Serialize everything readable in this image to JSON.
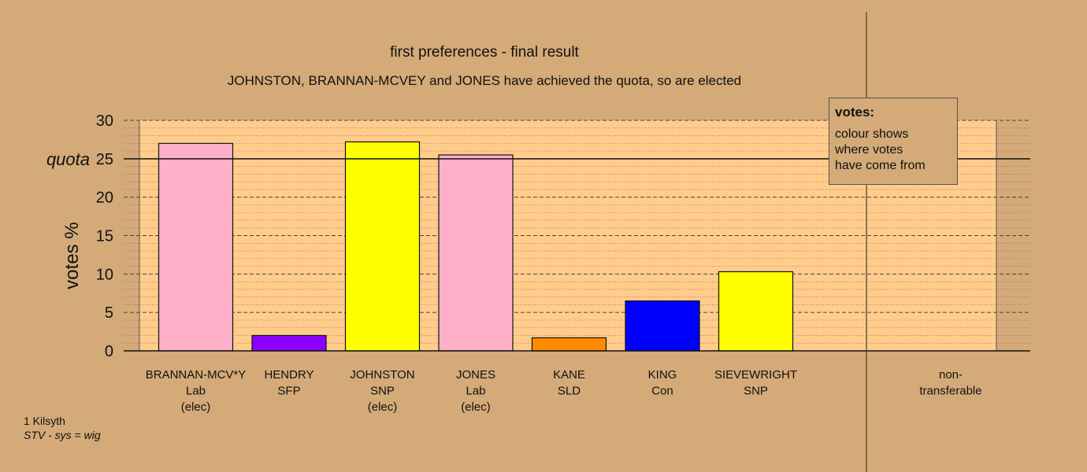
{
  "chart_data": {
    "type": "bar",
    "title": "first preferences - final result",
    "subtitle": "JOHNSTON, BRANNAN-MCVEY and JONES have achieved the quota, so are elected",
    "ylabel": "votes %",
    "ylim": [
      0,
      30
    ],
    "yticks": [
      0,
      5,
      10,
      15,
      20,
      25,
      30
    ],
    "quota": {
      "label": "quota",
      "value": 25
    },
    "categories": [
      {
        "lines": [
          "BRANNAN-MCV*Y",
          "Lab",
          "(elec)"
        ],
        "value": 27.0,
        "color": "#ffb0c8"
      },
      {
        "lines": [
          "HENDRY",
          "SFP"
        ],
        "value": 2.0,
        "color": "#8b00ff"
      },
      {
        "lines": [
          "JOHNSTON",
          "SNP",
          "(elec)"
        ],
        "value": 27.2,
        "color": "#ffff00"
      },
      {
        "lines": [
          "JONES",
          "Lab",
          "(elec)"
        ],
        "value": 25.5,
        "color": "#ffb0c8"
      },
      {
        "lines": [
          "KANE",
          "SLD"
        ],
        "value": 1.7,
        "color": "#ff8c00"
      },
      {
        "lines": [
          "KING",
          "Con"
        ],
        "value": 6.5,
        "color": "#0000ff"
      },
      {
        "lines": [
          "SIEVEWRIGHT",
          "SNP"
        ],
        "value": 10.3,
        "color": "#ffff00"
      }
    ],
    "nontransferable": {
      "lines": [
        "non-",
        "transferable"
      ],
      "value": 0
    },
    "colors": {
      "background": "#d4aa78",
      "plot": "#ffcc8c"
    }
  },
  "legend": {
    "title": "votes:",
    "lines": [
      "colour shows",
      "where votes",
      "have come from"
    ]
  },
  "footer": {
    "line1": "1 Kilsyth",
    "line2": "STV - sys = wig"
  }
}
